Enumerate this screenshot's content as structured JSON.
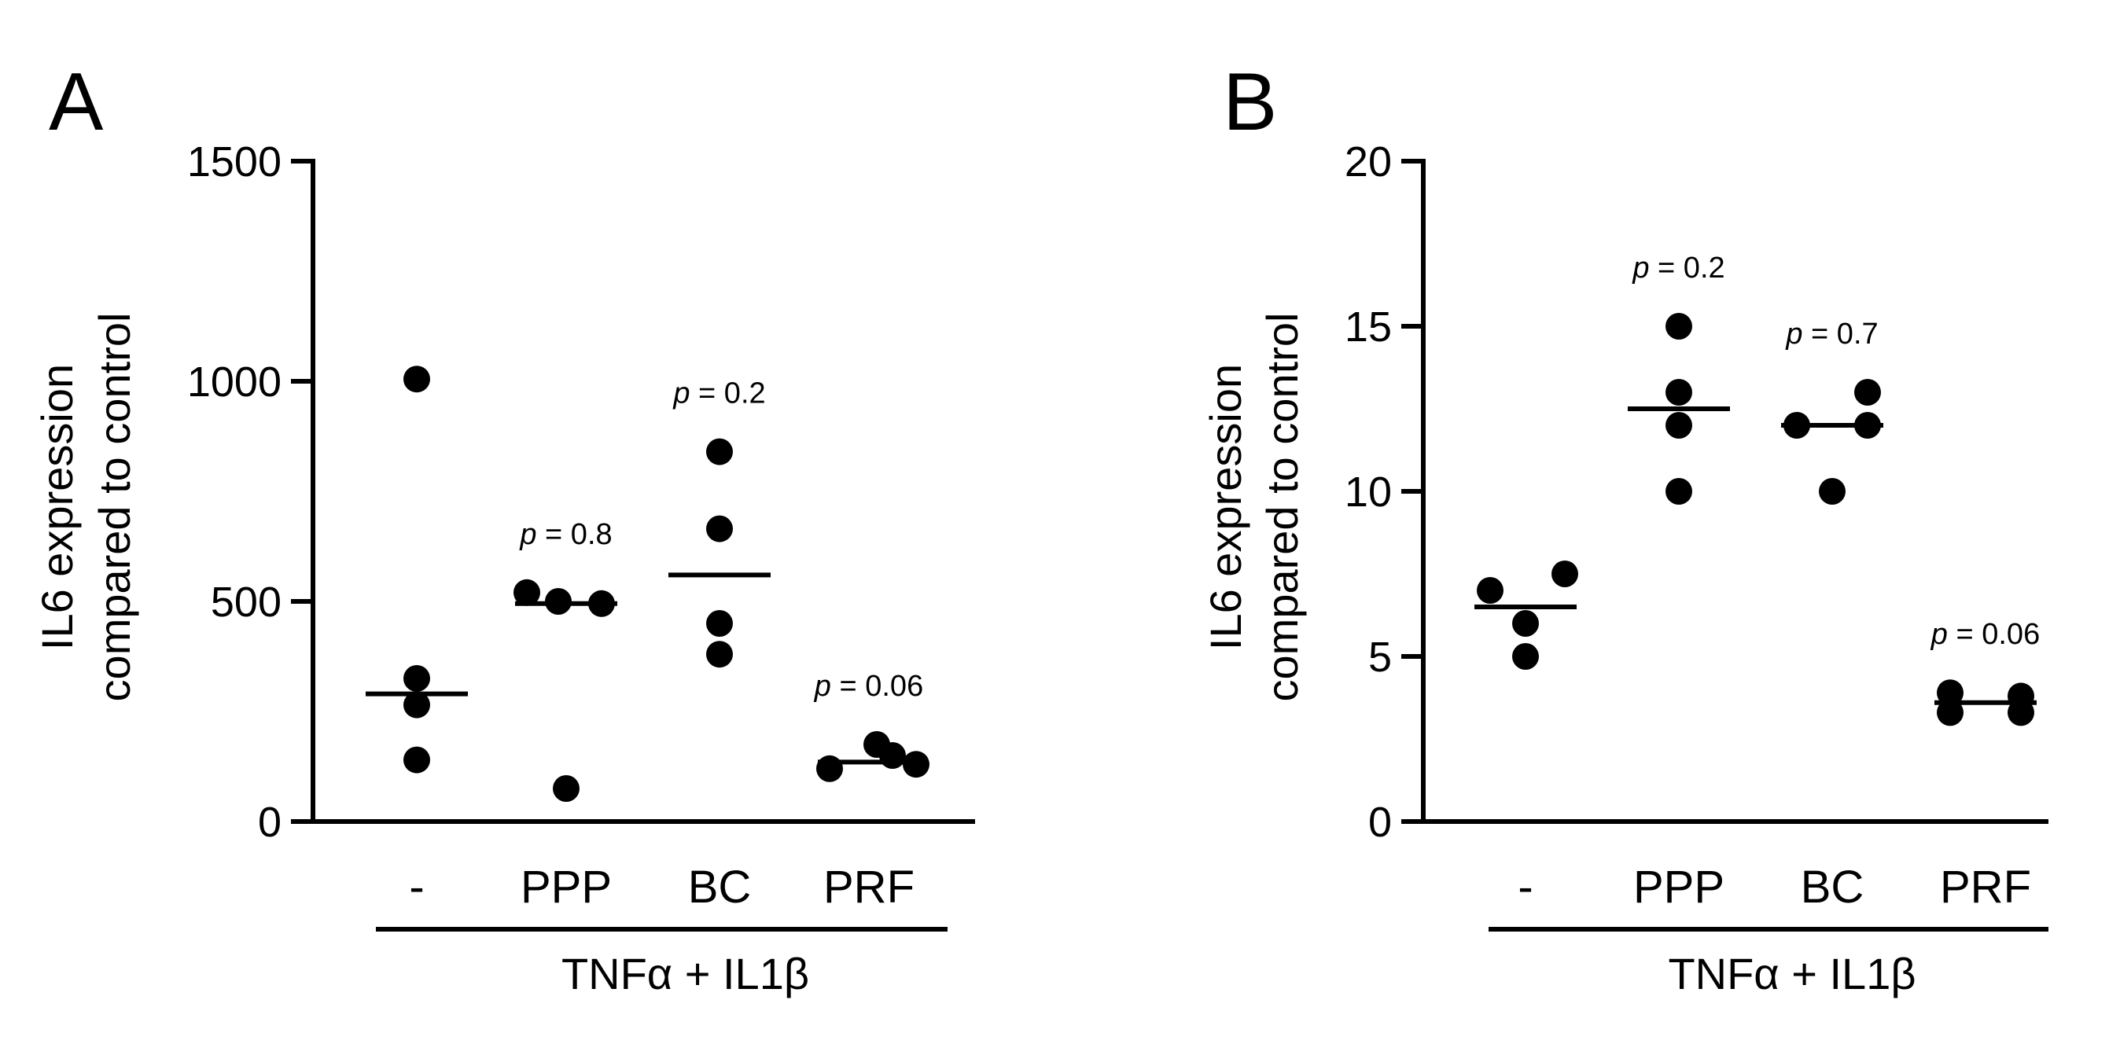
{
  "chart_data": [
    {
      "type": "scatter",
      "panel_label": "A",
      "title": "",
      "xlabel": "",
      "ylabel_lines": [
        "IL6 expression",
        "compared to control"
      ],
      "ylim": [
        0,
        1500
      ],
      "yticks": [
        0,
        500,
        1000,
        1500
      ],
      "categories": [
        "-",
        "PPP",
        "BC",
        "PRF"
      ],
      "treatment_label": "TNFα + IL1β",
      "grid": false,
      "legend": "none",
      "groups": [
        {
          "category": "-",
          "points": [
            1005,
            325,
            265,
            140
          ],
          "median": 290,
          "p_label": ""
        },
        {
          "category": "PPP",
          "points": [
            520,
            500,
            495,
            75
          ],
          "median": 495,
          "p_label": "p = 0.8"
        },
        {
          "category": "BC",
          "points": [
            840,
            665,
            450,
            380
          ],
          "median": 560,
          "p_label": "p = 0.2"
        },
        {
          "category": "PRF",
          "points": [
            120,
            175,
            130,
            150
          ],
          "median": 135,
          "p_label": "p = 0.06"
        }
      ]
    },
    {
      "type": "scatter",
      "panel_label": "B",
      "title": "",
      "xlabel": "",
      "ylabel_lines": [
        "IL6 expression",
        "compared to control"
      ],
      "ylim": [
        0,
        20
      ],
      "yticks": [
        0,
        5,
        10,
        15,
        20
      ],
      "categories": [
        "-",
        "PPP",
        "BC",
        "PRF"
      ],
      "treatment_label": "TNFα + IL1β",
      "grid": false,
      "legend": "none",
      "groups": [
        {
          "category": "-",
          "points": [
            7.0,
            6.0,
            7.5,
            5.0
          ],
          "median": 6.5,
          "p_label": ""
        },
        {
          "category": "PPP",
          "points": [
            15.0,
            13.0,
            12.0,
            10.0
          ],
          "median": 12.5,
          "p_label": "p = 0.2"
        },
        {
          "category": "BC",
          "points": [
            12.0,
            13.0,
            12.0,
            10.0
          ],
          "median": 12.0,
          "p_label": "p = 0.7"
        },
        {
          "category": "PRF",
          "points": [
            3.9,
            3.3,
            3.3,
            3.8
          ],
          "median": 3.6,
          "p_label": "p = 0.06"
        }
      ]
    }
  ]
}
